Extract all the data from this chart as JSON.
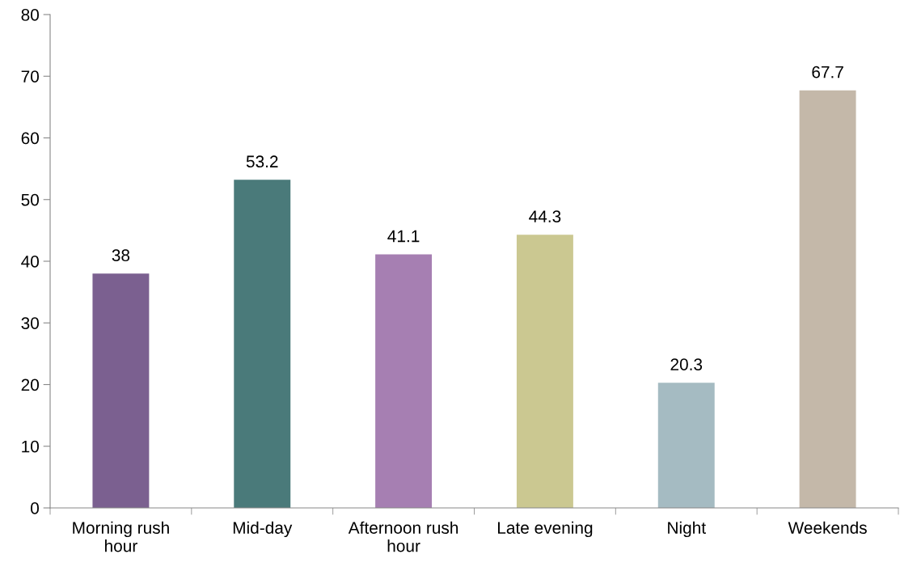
{
  "chart_data": {
    "type": "bar",
    "categories": [
      "Morning rush hour",
      "Mid-day",
      "Afternoon rush hour",
      "Late evening",
      "Night",
      "Weekends"
    ],
    "values": [
      38,
      53.2,
      41.1,
      44.3,
      20.3,
      67.7
    ],
    "colors": [
      "#7b6090",
      "#4a7a7a",
      "#a67fb2",
      "#cbc891",
      "#a5bbc2",
      "#c4b8a9"
    ],
    "ylim": [
      0,
      80
    ],
    "yticks": [
      0,
      10,
      20,
      30,
      40,
      50,
      60,
      70,
      80
    ],
    "grid": false,
    "data_labels": true
  }
}
